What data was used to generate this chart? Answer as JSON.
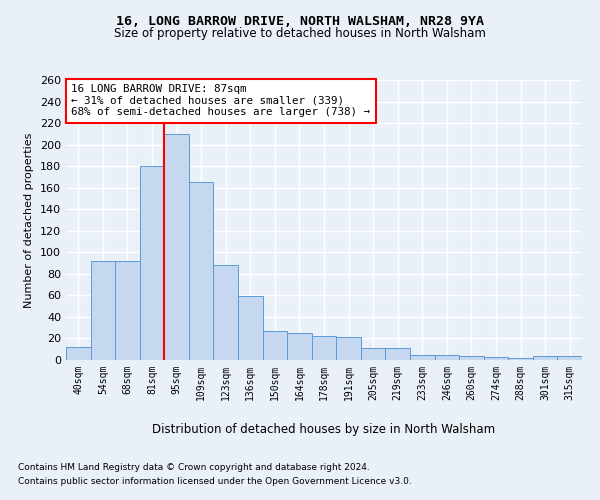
{
  "title1": "16, LONG BARROW DRIVE, NORTH WALSHAM, NR28 9YA",
  "title2": "Size of property relative to detached houses in North Walsham",
  "xlabel": "Distribution of detached houses by size in North Walsham",
  "ylabel": "Number of detached properties",
  "categories": [
    "40sqm",
    "54sqm",
    "68sqm",
    "81sqm",
    "95sqm",
    "109sqm",
    "123sqm",
    "136sqm",
    "150sqm",
    "164sqm",
    "178sqm",
    "191sqm",
    "205sqm",
    "219sqm",
    "233sqm",
    "246sqm",
    "260sqm",
    "274sqm",
    "288sqm",
    "301sqm",
    "315sqm"
  ],
  "values": [
    12,
    92,
    92,
    180,
    210,
    165,
    88,
    59,
    27,
    25,
    22,
    21,
    11,
    11,
    5,
    5,
    4,
    3,
    2,
    4,
    4
  ],
  "bar_color": "#c5d8f0",
  "bar_edge_color": "#5b9bd5",
  "annotation_text": "16 LONG BARROW DRIVE: 87sqm\n← 31% of detached houses are smaller (339)\n68% of semi-detached houses are larger (738) →",
  "annotation_box_color": "white",
  "annotation_box_edge": "red",
  "vline_color": "red",
  "vline_x_index": 3,
  "footnote1": "Contains HM Land Registry data © Crown copyright and database right 2024.",
  "footnote2": "Contains public sector information licensed under the Open Government Licence v3.0.",
  "background_color": "#eaf0f8",
  "plot_background": "#eaf0f8",
  "grid_color": "white",
  "ylim": [
    0,
    260
  ],
  "yticks": [
    0,
    20,
    40,
    60,
    80,
    100,
    120,
    140,
    160,
    180,
    200,
    220,
    240,
    260
  ]
}
